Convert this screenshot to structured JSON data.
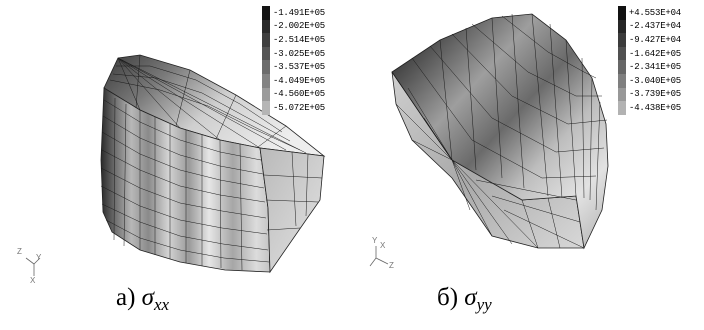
{
  "panels": [
    {
      "caption_prefix": "а)",
      "caption_symbol": "σ",
      "caption_subscript": "xx",
      "legend": [
        {
          "label": "-1.491E+05",
          "color": "#141414"
        },
        {
          "label": "-2.002E+05",
          "color": "#2a2a2a"
        },
        {
          "label": "-2.514E+05",
          "color": "#3f3f3f"
        },
        {
          "label": "-3.025E+05",
          "color": "#555555"
        },
        {
          "label": "-3.537E+05",
          "color": "#6c6c6c"
        },
        {
          "label": "-4.049E+05",
          "color": "#838383"
        },
        {
          "label": "-4.560E+05",
          "color": "#9b9b9b"
        },
        {
          "label": "-5.072E+05",
          "color": "#b5b5b5"
        }
      ],
      "axes": {
        "labels": [
          "Z",
          "Y",
          "X"
        ]
      }
    },
    {
      "caption_prefix": "б)",
      "caption_symbol": "σ",
      "caption_subscript": "yy",
      "legend": [
        {
          "label": "+4.553E+04",
          "color": "#111111"
        },
        {
          "label": "-2.437E+04",
          "color": "#262626"
        },
        {
          "label": "-9.427E+04",
          "color": "#3b3b3b"
        },
        {
          "label": "-1.642E+05",
          "color": "#505050"
        },
        {
          "label": "-2.341E+05",
          "color": "#676767"
        },
        {
          "label": "-3.040E+05",
          "color": "#7f7f7f"
        },
        {
          "label": "-3.739E+05",
          "color": "#989898"
        },
        {
          "label": "-4.438E+05",
          "color": "#b2b2b2"
        }
      ],
      "axes": {
        "labels": [
          "Y",
          "X",
          "Z"
        ]
      }
    }
  ]
}
